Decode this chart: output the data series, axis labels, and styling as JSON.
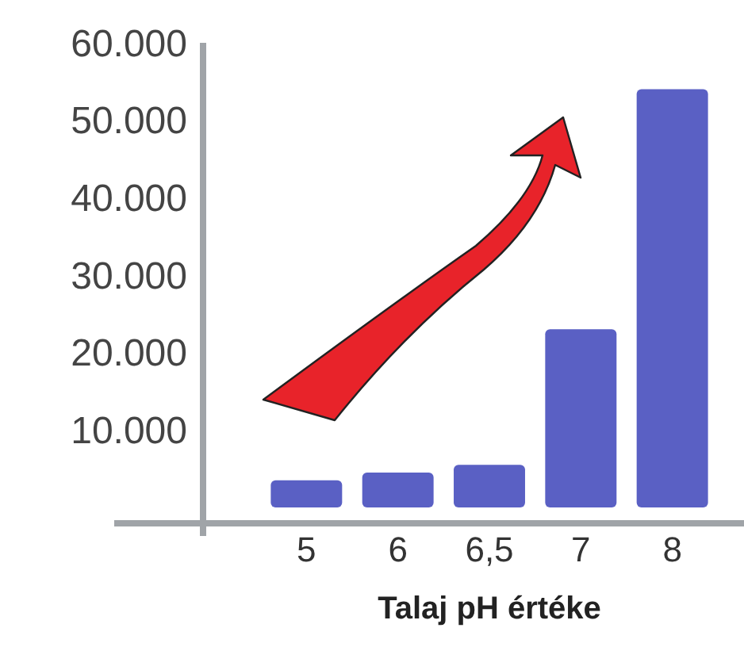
{
  "chart_data": {
    "type": "bar",
    "xlabel": "Talaj pH értéke",
    "categories": [
      "5",
      "6",
      "6,5",
      "7",
      "8"
    ],
    "values": [
      3500,
      4500,
      5500,
      23000,
      54000
    ],
    "color": "#5a60c4",
    "ylim": [
      0,
      60000
    ],
    "yticks": [
      {
        "value": 10000,
        "label": "10.000"
      },
      {
        "value": 20000,
        "label": "20.000"
      },
      {
        "value": 30000,
        "label": "30.000"
      },
      {
        "value": 40000,
        "label": "40.000"
      },
      {
        "value": 50000,
        "label": "50.000"
      },
      {
        "value": 60000,
        "label": "60.000"
      }
    ],
    "grid": false
  }
}
